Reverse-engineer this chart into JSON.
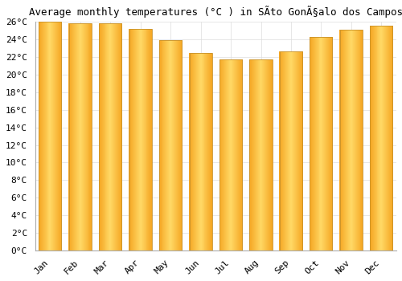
{
  "title": "Average monthly temperatures (°C ) in SÃto GonÃ§alo dos Campos",
  "months": [
    "Jan",
    "Feb",
    "Mar",
    "Apr",
    "May",
    "Jun",
    "Jul",
    "Aug",
    "Sep",
    "Oct",
    "Nov",
    "Dec"
  ],
  "temperatures": [
    26.0,
    25.8,
    25.8,
    25.2,
    23.9,
    22.5,
    21.7,
    21.7,
    22.6,
    24.3,
    25.1,
    25.6
  ],
  "bar_color_center": "#FFD966",
  "bar_color_edge": "#F5A623",
  "bar_outline_color": "#C8922A",
  "ylim": [
    0,
    26
  ],
  "ytick_step": 2,
  "background_color": "#ffffff",
  "grid_color": "#dddddd",
  "title_fontsize": 9,
  "tick_fontsize": 8,
  "font_family": "monospace"
}
